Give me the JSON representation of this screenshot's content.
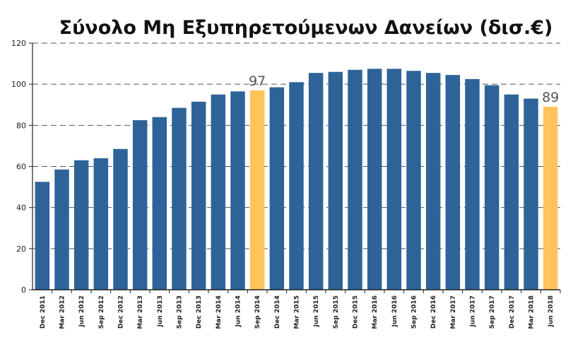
{
  "chart_data": {
    "type": "bar",
    "title": "Σύνολο Μη Εξυπηρετούμενων Δανείων (δισ.€)",
    "xlabel": "",
    "ylabel": "",
    "ylim": [
      0,
      120
    ],
    "yticks": [
      0,
      20,
      40,
      60,
      80,
      100,
      120
    ],
    "grid": true,
    "legend": "none",
    "categories": [
      "Dec 2011",
      "Mar 2012",
      "Jun 2012",
      "Sep 2012",
      "Dec 2012",
      "Mar 2013",
      "Jun 2013",
      "Sep 2013",
      "Dec 2013",
      "Mar 2014",
      "Jun 2014",
      "Sep 2014",
      "Dec 2014",
      "Mar 2015",
      "Jun 2015",
      "Sep 2015",
      "Dec 2015",
      "Mar 2016",
      "Jun 2016",
      "Sep 2016",
      "Dec 2016",
      "Mar 2017",
      "Jun 2017",
      "Sep 2017",
      "Dec 2017",
      "Mar 2018",
      "Jun 2018"
    ],
    "values": [
      52.5,
      58.5,
      63,
      64,
      68.5,
      82.5,
      84,
      88.5,
      91.5,
      95,
      96.5,
      97,
      98.5,
      101,
      105.5,
      106,
      107,
      107.5,
      107.5,
      106.5,
      105.5,
      104.5,
      102.5,
      99.5,
      95,
      93,
      89
    ],
    "highlight_indices": [
      11,
      26
    ],
    "data_labels": [
      {
        "index": 11,
        "text": "97"
      },
      {
        "index": 26,
        "text": "89"
      }
    ],
    "colors": {
      "bar": "#2E6399",
      "highlight": "#FFC35C",
      "axis": "#222222",
      "grid": "#555555",
      "label": "#555555"
    }
  }
}
